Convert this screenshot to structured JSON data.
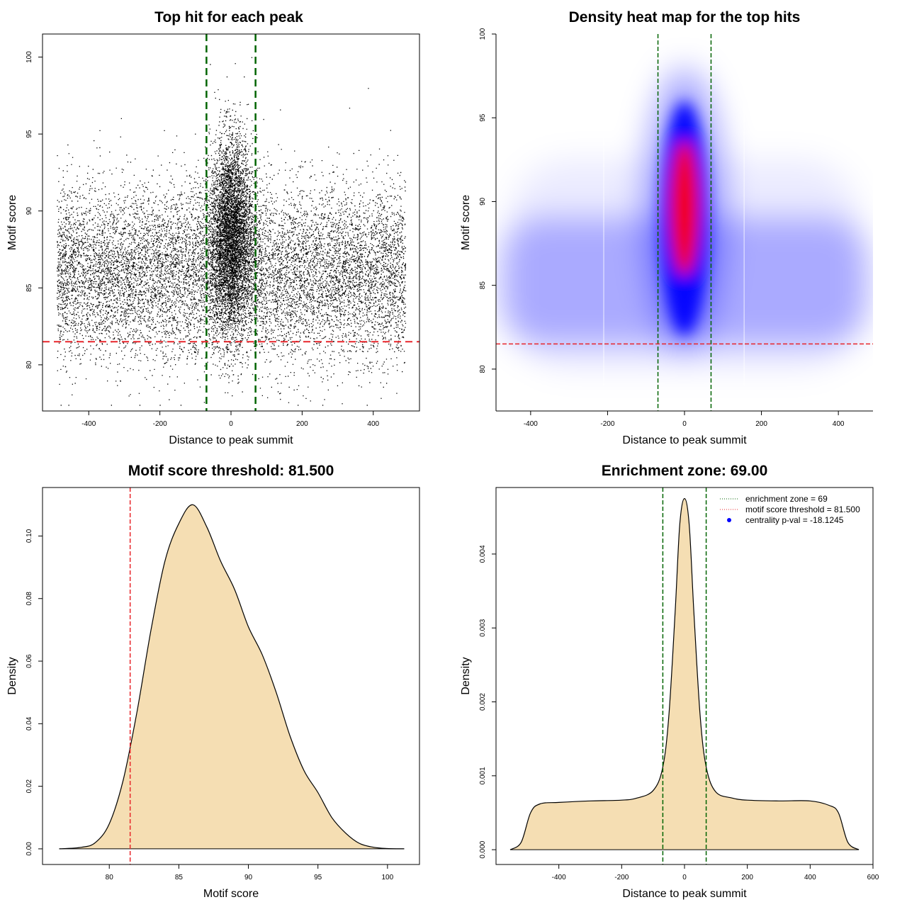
{
  "colors": {
    "threshold_line": "#e8262b",
    "zone_line": "#006400",
    "density_fill": "#f5deb3",
    "heat_low": "#ffffff",
    "heat_mid": "#0000ff",
    "heat_high": "#ff0000",
    "legend_dot": "#0000ff"
  },
  "chart_data": [
    {
      "id": "scatter",
      "type": "scatter",
      "title": "Top hit for each peak",
      "xlabel": "Distance to peak summit",
      "ylabel": "Motif score",
      "xlim": [
        -530,
        530
      ],
      "ylim": [
        77,
        101.5
      ],
      "xticks": [
        -400,
        -200,
        0,
        200,
        400
      ],
      "yticks": [
        80,
        85,
        90,
        95,
        100
      ],
      "threshold": 81.5,
      "zone": [
        -69,
        69
      ],
      "x_range": [
        -490,
        490
      ],
      "central_mean_score": 88.5,
      "background_mean_score": 86
    },
    {
      "id": "heatmap",
      "type": "heatmap",
      "title": "Density heat map for the top hits",
      "xlabel": "Distance to peak summit",
      "ylabel": "Motif score",
      "xlim": [
        -490,
        490
      ],
      "ylim": [
        77.5,
        100
      ],
      "xticks": [
        -400,
        -200,
        0,
        200,
        400
      ],
      "yticks": [
        80,
        85,
        90,
        95,
        100
      ],
      "threshold": 81.5,
      "zone": [
        -69,
        69
      ],
      "peak_center": [
        0,
        89.5
      ]
    },
    {
      "id": "score_density",
      "type": "area",
      "title": "Motif score threshold: 81.500",
      "xlabel": "Motif score",
      "ylabel": "Density",
      "xlim": [
        75.2,
        102.3
      ],
      "ylim": [
        -0.005,
        0.1155
      ],
      "xticks": [
        80,
        85,
        90,
        95,
        100
      ],
      "yticks": [
        0.0,
        0.02,
        0.04,
        0.06,
        0.08,
        0.1
      ],
      "ytick_labels": [
        "0.00",
        "0.02",
        "0.04",
        "0.06",
        "0.08",
        "0.10"
      ],
      "threshold": 81.5,
      "x": [
        76.4,
        78,
        79,
        80,
        81,
        82,
        83,
        84,
        85,
        86,
        87,
        88,
        89,
        90,
        91,
        92,
        93,
        94,
        95,
        96,
        97,
        98,
        99,
        100,
        101.2
      ],
      "y": [
        0,
        0.0005,
        0.002,
        0.008,
        0.022,
        0.044,
        0.07,
        0.092,
        0.104,
        0.11,
        0.103,
        0.092,
        0.083,
        0.071,
        0.062,
        0.05,
        0.036,
        0.025,
        0.018,
        0.01,
        0.005,
        0.0017,
        0.0005,
        0.0001,
        0
      ]
    },
    {
      "id": "position_density",
      "type": "area",
      "title": "Enrichment zone: 69.00",
      "xlabel": "Distance to peak summit",
      "ylabel": "Density",
      "xlim": [
        -600,
        600
      ],
      "ylim": [
        -0.0002,
        0.0049
      ],
      "xticks": [
        -400,
        -200,
        0,
        200,
        400,
        600
      ],
      "yticks": [
        0.0,
        0.001,
        0.002,
        0.003,
        0.004
      ],
      "ytick_labels": [
        "0.000",
        "0.001",
        "0.002",
        "0.003",
        "0.004"
      ],
      "zone": [
        -69,
        69
      ],
      "x": [
        -555,
        -520,
        -490,
        -460,
        -400,
        -300,
        -200,
        -150,
        -100,
        -70,
        -50,
        -30,
        -15,
        0,
        15,
        30,
        50,
        70,
        100,
        150,
        200,
        300,
        400,
        460,
        490,
        520,
        555
      ],
      "y": [
        0,
        0.0001,
        0.0005,
        0.00062,
        0.00064,
        0.00066,
        0.00067,
        0.0007,
        0.0008,
        0.0011,
        0.0018,
        0.0032,
        0.0044,
        0.00475,
        0.0044,
        0.0032,
        0.0018,
        0.0011,
        0.00078,
        0.0007,
        0.00067,
        0.00066,
        0.00066,
        0.0006,
        0.0005,
        0.0001,
        0
      ],
      "legend": [
        {
          "label": "enrichment zone = 69",
          "style": "dotted",
          "color": "#006400"
        },
        {
          "label": "motif score threshold = 81.500",
          "style": "dotted",
          "color": "#e8262b"
        },
        {
          "label": "centrality p-val = -18.1245",
          "style": "point",
          "color": "#0000ff"
        }
      ]
    }
  ]
}
